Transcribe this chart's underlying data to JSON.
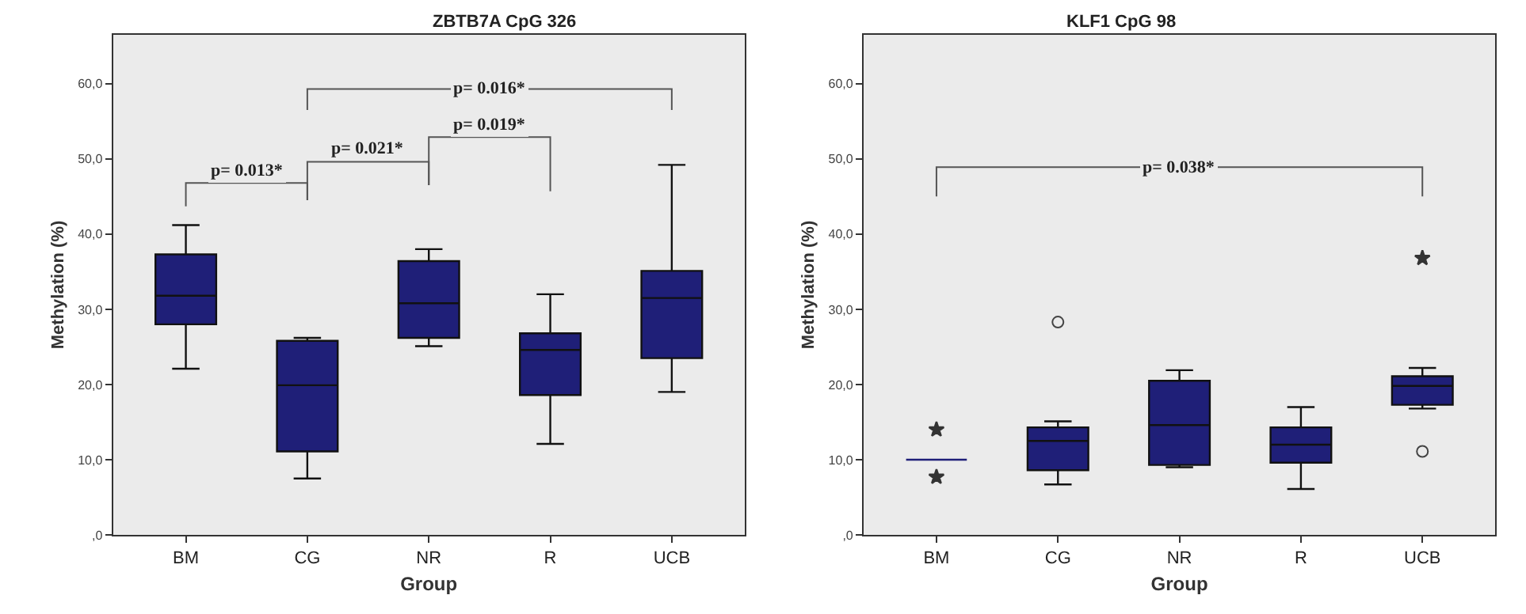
{
  "chart_data": [
    {
      "type": "box",
      "title": "ZBTB7A CpG 326",
      "xlabel": "Group",
      "ylabel": "Methylation (%)",
      "categories": [
        "BM",
        "CG",
        "NR",
        "R",
        "UCB"
      ],
      "ylim": [
        0,
        66.5
      ],
      "yticks": [
        {
          "value": 0,
          "label": ",0"
        },
        {
          "value": 10,
          "label": "10,0"
        },
        {
          "value": 20,
          "label": "20,0"
        },
        {
          "value": 30,
          "label": "30,0"
        },
        {
          "value": 40,
          "label": "40,0"
        },
        {
          "value": 50,
          "label": "50,0"
        },
        {
          "value": 60,
          "label": "60,0"
        }
      ],
      "series": [
        {
          "type": "box",
          "color": "#1f1f78",
          "boxes": [
            {
              "low": 22.1,
              "q1": 28.0,
              "median": 31.8,
              "q3": 37.3,
              "high": 41.2
            },
            {
              "low": 7.5,
              "q1": 11.1,
              "median": 19.9,
              "q3": 25.8,
              "high": 26.2
            },
            {
              "low": 25.1,
              "q1": 26.2,
              "median": 30.8,
              "q3": 36.4,
              "high": 38.0
            },
            {
              "low": 12.1,
              "q1": 18.6,
              "median": 24.6,
              "q3": 26.8,
              "high": 32.0
            },
            {
              "low": 19.0,
              "q1": 23.5,
              "median": 31.5,
              "q3": 35.1,
              "high": 49.2
            }
          ]
        }
      ],
      "annotations": [
        "p= 0.013*",
        "p= 0.021*",
        "p= 0.019*",
        "p= 0.016*"
      ]
    },
    {
      "type": "box",
      "title": "KLF1 CpG 98",
      "xlabel": "Group",
      "ylabel": "Methylation (%)",
      "categories": [
        "BM",
        "CG",
        "NR",
        "R",
        "UCB"
      ],
      "ylim": [
        0,
        66.5
      ],
      "yticks": [
        {
          "value": 0,
          "label": ",0"
        },
        {
          "value": 10,
          "label": "10,0"
        },
        {
          "value": 20,
          "label": "20,0"
        },
        {
          "value": 30,
          "label": "30,0"
        },
        {
          "value": 40,
          "label": "40,0"
        },
        {
          "value": 50,
          "label": "50,0"
        },
        {
          "value": 60,
          "label": "60,0"
        }
      ],
      "series": [
        {
          "type": "box",
          "color": "#1f1f78",
          "boxes": [
            {
              "low": 10.0,
              "q1": 10.0,
              "median": 10.0,
              "q3": 10.0,
              "high": 10.0
            },
            {
              "low": 6.7,
              "q1": 8.6,
              "median": 12.5,
              "q3": 14.3,
              "high": 15.1,
              "outliers": [
                28.3
              ]
            },
            {
              "low": 9.0,
              "q1": 9.3,
              "median": 14.6,
              "q3": 20.5,
              "high": 21.9
            },
            {
              "low": 6.1,
              "q1": 9.6,
              "median": 12.0,
              "q3": 14.3,
              "high": 17.0
            },
            {
              "low": 16.8,
              "q1": 17.3,
              "median": 19.8,
              "q3": 21.1,
              "high": 22.2,
              "outliers": [
                11.1
              ]
            }
          ]
        },
        {
          "type": "scatter",
          "marker": "star",
          "color": "#333333",
          "x": [
            "BM",
            "BM",
            "UCB"
          ],
          "values": [
            14.0,
            7.7,
            36.8
          ]
        }
      ],
      "annotations": [
        "p= 0.038*"
      ]
    }
  ]
}
